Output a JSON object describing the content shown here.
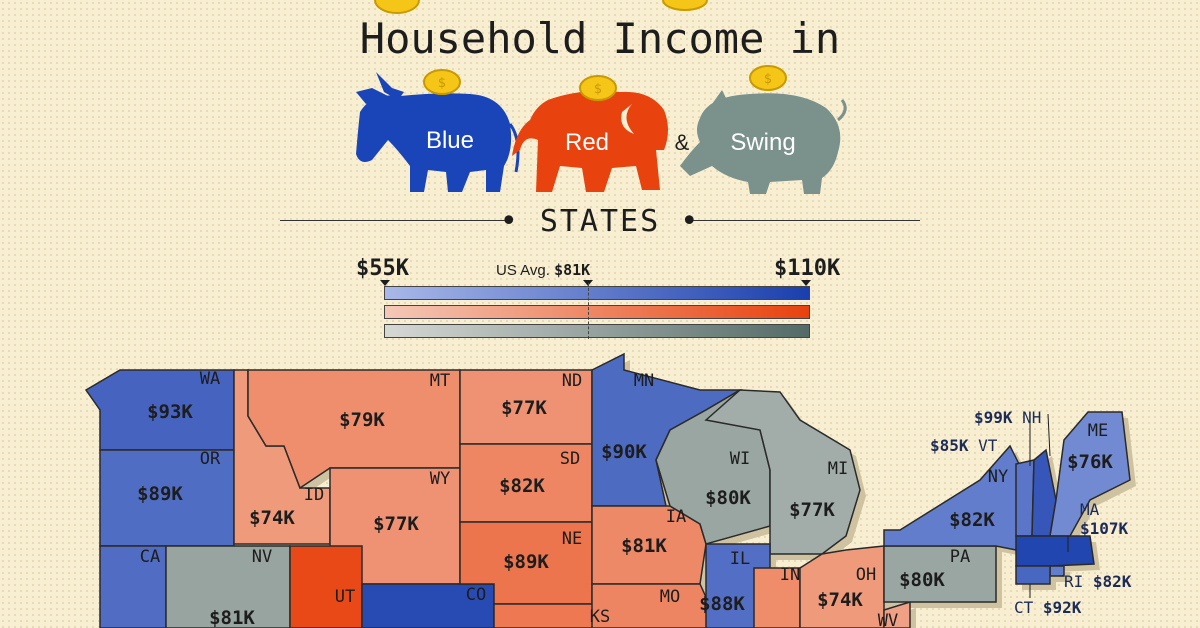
{
  "title": {
    "line1": "Household Income in",
    "blue": "Blue",
    "red": "Red",
    "amp": "&",
    "swing": "Swing",
    "states": "STATES"
  },
  "colors": {
    "blue_dark": "#1a3fad",
    "blue_light": "#a8b8e8",
    "red_dark": "#e8420e",
    "red_light": "#f4c8b6",
    "swing_dark": "#536a66",
    "swing_light": "#d6d8d4",
    "background": "#f8efd2"
  },
  "scale": {
    "min_label": "$55K",
    "max_label": "$110K",
    "avg_prefix": "US Avg.",
    "avg_label": "$81K"
  },
  "chart_data": {
    "type": "choropleth-map",
    "title": "Household Income in Blue, Red & Swing STATES",
    "scale": {
      "min": 55,
      "max": 110,
      "unit": "$K",
      "us_average": 81
    },
    "states": [
      {
        "abbr": "WA",
        "value": "$93K",
        "group": "blue",
        "income_k": 93
      },
      {
        "abbr": "OR",
        "value": "$89K",
        "group": "blue",
        "income_k": 89
      },
      {
        "abbr": "CA",
        "value": "",
        "group": "blue",
        "income_k": null
      },
      {
        "abbr": "ID",
        "value": "$74K",
        "group": "red",
        "income_k": 74
      },
      {
        "abbr": "NV",
        "value": "$81K",
        "group": "swing",
        "income_k": 81
      },
      {
        "abbr": "MT",
        "value": "$79K",
        "group": "red",
        "income_k": 79
      },
      {
        "abbr": "WY",
        "value": "$77K",
        "group": "red",
        "income_k": 77
      },
      {
        "abbr": "UT",
        "value": "",
        "group": "red",
        "income_k": null
      },
      {
        "abbr": "CO",
        "value": "",
        "group": "blue",
        "income_k": null
      },
      {
        "abbr": "ND",
        "value": "$77K",
        "group": "red",
        "income_k": 77
      },
      {
        "abbr": "SD",
        "value": "$82K",
        "group": "red",
        "income_k": 82
      },
      {
        "abbr": "NE",
        "value": "$89K",
        "group": "red",
        "income_k": 89
      },
      {
        "abbr": "KS",
        "value": "",
        "group": "red",
        "income_k": null
      },
      {
        "abbr": "MN",
        "value": "$90K",
        "group": "blue",
        "income_k": 90
      },
      {
        "abbr": "IA",
        "value": "$81K",
        "group": "red",
        "income_k": 81
      },
      {
        "abbr": "MO",
        "value": "",
        "group": "red",
        "income_k": null
      },
      {
        "abbr": "WI",
        "value": "$80K",
        "group": "swing",
        "income_k": 80
      },
      {
        "abbr": "MI",
        "value": "$77K",
        "group": "swing",
        "income_k": 77
      },
      {
        "abbr": "IL",
        "value": "$88K",
        "group": "blue",
        "income_k": 88
      },
      {
        "abbr": "IN",
        "value": "",
        "group": "red",
        "income_k": null
      },
      {
        "abbr": "OH",
        "value": "$74K",
        "group": "red",
        "income_k": 74
      },
      {
        "abbr": "WV",
        "value": "",
        "group": "red",
        "income_k": null
      },
      {
        "abbr": "PA",
        "value": "$80K",
        "group": "swing",
        "income_k": 80
      },
      {
        "abbr": "NY",
        "value": "$82K",
        "group": "blue",
        "income_k": 82
      },
      {
        "abbr": "VT",
        "value": "$85K",
        "group": "blue",
        "income_k": 85
      },
      {
        "abbr": "NH",
        "value": "$99K",
        "group": "blue",
        "income_k": 99
      },
      {
        "abbr": "ME",
        "value": "$76K",
        "group": "blue",
        "income_k": 76
      },
      {
        "abbr": "MA",
        "value": "$107K",
        "group": "blue",
        "income_k": 107
      },
      {
        "abbr": "RI",
        "value": "$82K",
        "group": "blue",
        "income_k": 82
      },
      {
        "abbr": "CT",
        "value": "$92K",
        "group": "blue",
        "income_k": 92
      }
    ]
  }
}
